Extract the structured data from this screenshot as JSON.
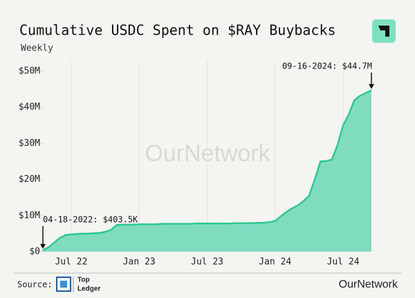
{
  "chart_data": {
    "type": "area",
    "title": "Cumulative USDC Spent on $RAY Buybacks",
    "subtitle": "Weekly",
    "categories": [
      null,
      null,
      null,
      null,
      null,
      "Jul 22",
      null,
      null,
      null,
      null,
      null,
      null,
      null,
      null,
      null,
      null,
      null,
      "Jan 23",
      null,
      null,
      null,
      null,
      null,
      null,
      null,
      null,
      null,
      null,
      null,
      "Jul 23",
      null,
      null,
      null,
      null,
      null,
      null,
      null,
      null,
      null,
      null,
      null,
      "Jan 24",
      null,
      null,
      null,
      null,
      null,
      null,
      null,
      null,
      null,
      null,
      null,
      "Jul 24",
      null,
      null,
      null,
      null,
      null
    ],
    "series": [
      {
        "name": "Cumulative USDC Spent",
        "color": "#2ec795",
        "values": [
          0.4035,
          1.2,
          2.5,
          3.8,
          4.6,
          4.8,
          4.9,
          5.0,
          5.0,
          5.1,
          5.2,
          5.5,
          6.0,
          7.4,
          7.5,
          7.5,
          7.5,
          7.6,
          7.6,
          7.6,
          7.6,
          7.7,
          7.7,
          7.7,
          7.7,
          7.7,
          7.7,
          7.8,
          7.8,
          7.8,
          7.8,
          7.8,
          7.8,
          7.8,
          7.9,
          7.9,
          7.9,
          7.9,
          8.0,
          8.0,
          8.2,
          8.5,
          9.8,
          11,
          12,
          12.8,
          14,
          15.5,
          20,
          25,
          25.1,
          25.5,
          29.5,
          35,
          38,
          42,
          43.2,
          44,
          44.7
        ]
      }
    ],
    "ylim": [
      0,
      50
    ],
    "yticks": [
      {
        "value": 0,
        "label": "$0"
      },
      {
        "value": 10,
        "label": "$10M"
      },
      {
        "value": 20,
        "label": "$20M"
      },
      {
        "value": 30,
        "label": "$30M"
      },
      {
        "value": 40,
        "label": "$40M"
      },
      {
        "value": 50,
        "label": "$50M"
      }
    ],
    "grid": true,
    "annotations": [
      "04-18-2022: $403.5K",
      "09-16-2024: $44.7M"
    ],
    "watermark": "OurNetwork",
    "source_label": "Source:",
    "source_name": [
      "Top",
      "Ledger"
    ],
    "brand": "OurNetwork"
  }
}
